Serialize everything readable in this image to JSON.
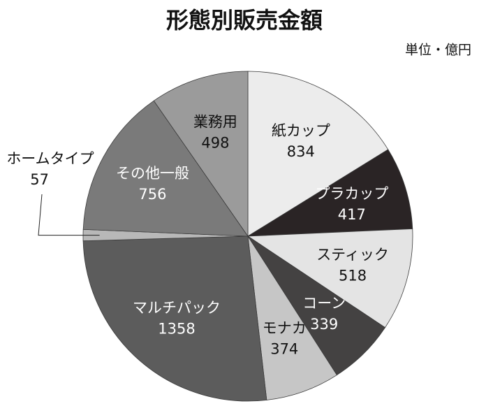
{
  "chart_data": {
    "type": "pie",
    "title": "形態別販売金額",
    "subtitle": "単位・億円",
    "categories": [
      "紙カップ",
      "プラカップ",
      "スティック",
      "コーン",
      "モナカ",
      "マルチパック",
      "ホームタイプ",
      "その他一般",
      "業務用"
    ],
    "values": [
      834,
      417,
      518,
      339,
      374,
      1358,
      57,
      756,
      498
    ],
    "colors": [
      "#ececec",
      "#2a2425",
      "#e4e4e4",
      "#444242",
      "#c6c6c6",
      "#5c5c5c",
      "#b8b8b8",
      "#7a7a7a",
      "#9b9b9b"
    ]
  }
}
